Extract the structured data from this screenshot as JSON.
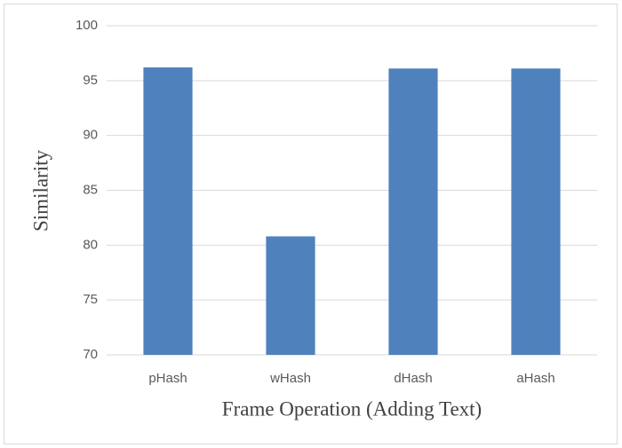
{
  "chart_data": {
    "type": "bar",
    "x_label": "Frame Operation (Adding Text)",
    "y_label": "Similarity",
    "categories": [
      "pHash",
      "wHash",
      "dHash",
      "aHash"
    ],
    "values": [
      96.2,
      80.8,
      96.1,
      96.1
    ],
    "color": "#4f81bd",
    "ylim": [
      70,
      100
    ],
    "yticks": [
      70,
      75,
      80,
      85,
      90,
      95,
      100
    ],
    "grid": true
  }
}
